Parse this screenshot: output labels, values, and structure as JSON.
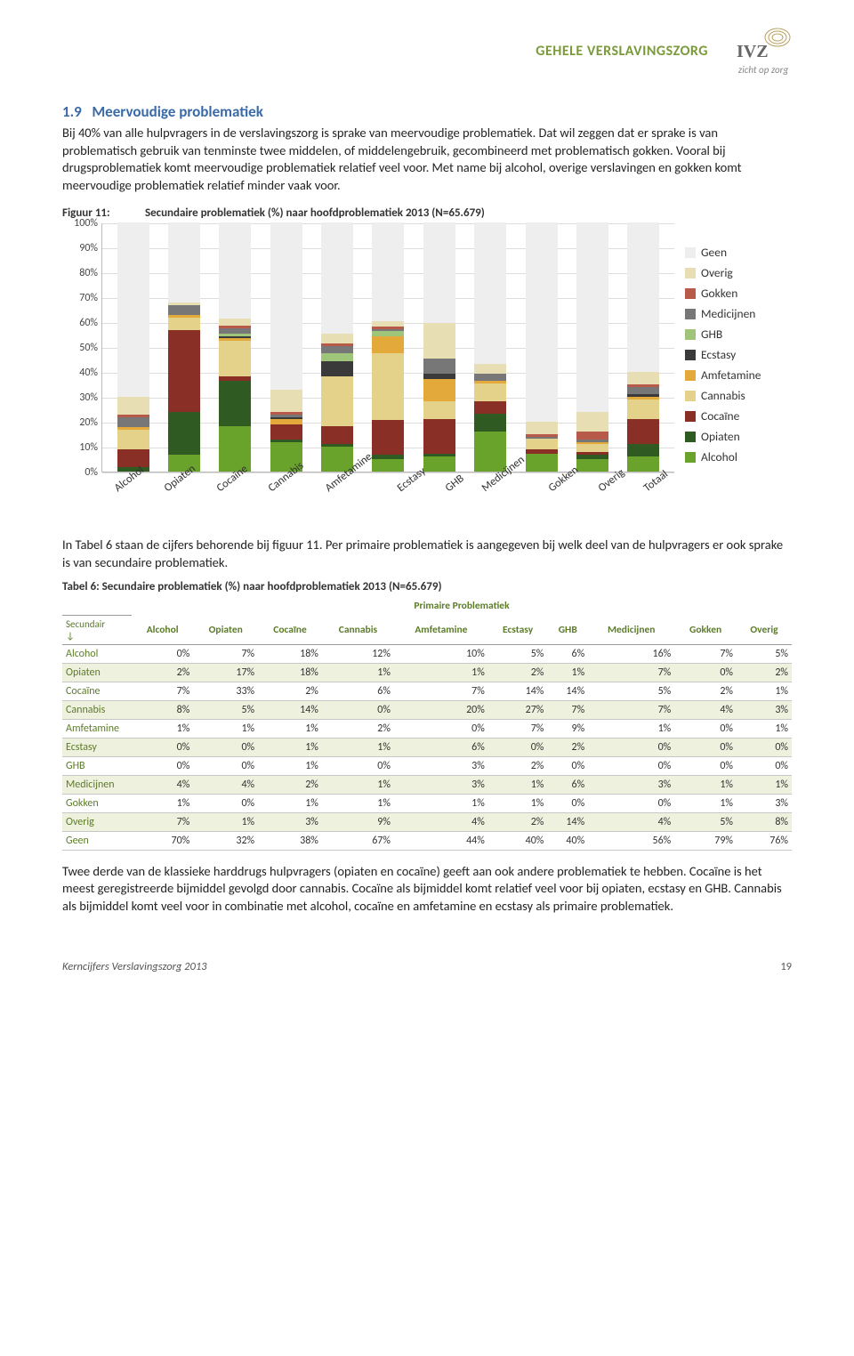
{
  "header": {
    "band": "GEHELE VERSLAVINGSZORG",
    "logo_main": "IVZ",
    "logo_sub": "zicht op zorg"
  },
  "section": {
    "number": "1.9",
    "title": "Meervoudige problematiek"
  },
  "para1": "Bij 40% van alle hulpvragers in de verslavingszorg is sprake van meervoudige problematiek. Dat wil zeggen dat er sprake is van problematisch gebruik van tenminste twee middelen, of middelengebruik, gecombineerd met problematisch gokken. Vooral bij drugsproblematiek komt meervoudige problematiek relatief veel voor. Met name bij alcohol, overige verslavingen en gokken komt meervoudige problematiek relatief minder vaak voor.",
  "fig": {
    "label": "Figuur 11:",
    "title": "Secundaire problematiek (%) naar hoofdproblematiek 2013 (N=65.679)",
    "yticks": [
      0,
      10,
      20,
      30,
      40,
      50,
      60,
      70,
      80,
      90,
      100
    ],
    "categories": [
      "Alcohol",
      "Opiaten",
      "Cocaïne",
      "Cannabis",
      "Amfetamine",
      "Ecstasy",
      "GHB",
      "Medicijnen",
      "Gokken",
      "Overig",
      "Totaal"
    ],
    "series_order": [
      "Alcohol",
      "Opiaten",
      "Cocaïne",
      "Cannabis",
      "Amfetamine",
      "Ecstasy",
      "GHB",
      "Medicijnen",
      "Gokken",
      "Overig",
      "Geen"
    ],
    "colors": {
      "Alcohol": "#6aa32c",
      "Opiaten": "#2f5a22",
      "Cocaïne": "#8a2f25",
      "Cannabis": "#e5d28a",
      "Amfetamine": "#e3a93a",
      "Ecstasy": "#3a3a3a",
      "GHB": "#9fc57a",
      "Medicijnen": "#777777",
      "Gokken": "#b85a4a",
      "Overig": "#e7dfb3",
      "Geen": "#eeeeee"
    },
    "stacks": {
      "Alcohol": {
        "Alcohol": 0,
        "Opiaten": 2,
        "Cocaïne": 7,
        "Cannabis": 8,
        "Amfetamine": 1,
        "Ecstasy": 0,
        "GHB": 0,
        "Medicijnen": 4,
        "Gokken": 1,
        "Overig": 7,
        "Geen": 70
      },
      "Opiaten": {
        "Alcohol": 7,
        "Opiaten": 17,
        "Cocaïne": 33,
        "Cannabis": 5,
        "Amfetamine": 1,
        "Ecstasy": 0,
        "GHB": 0,
        "Medicijnen": 4,
        "Gokken": 0,
        "Overig": 1,
        "Geen": 32
      },
      "Cocaïne": {
        "Alcohol": 18,
        "Opiaten": 18,
        "Cocaïne": 2,
        "Cannabis": 14,
        "Amfetamine": 1,
        "Ecstasy": 1,
        "GHB": 1,
        "Medicijnen": 2,
        "Gokken": 1,
        "Overig": 3,
        "Geen": 38
      },
      "Cannabis": {
        "Alcohol": 12,
        "Opiaten": 1,
        "Cocaïne": 6,
        "Cannabis": 0,
        "Amfetamine": 2,
        "Ecstasy": 1,
        "GHB": 0,
        "Medicijnen": 1,
        "Gokken": 1,
        "Overig": 9,
        "Geen": 67
      },
      "Amfetamine": {
        "Alcohol": 10,
        "Opiaten": 1,
        "Cocaïne": 7,
        "Cannabis": 20,
        "Amfetamine": 0,
        "Ecstasy": 6,
        "GHB": 3,
        "Medicijnen": 3,
        "Gokken": 1,
        "Overig": 4,
        "Geen": 44
      },
      "Ecstasy": {
        "Alcohol": 5,
        "Opiaten": 2,
        "Cocaïne": 14,
        "Cannabis": 27,
        "Amfetamine": 7,
        "Ecstasy": 0,
        "GHB": 2,
        "Medicijnen": 1,
        "Gokken": 1,
        "Overig": 2,
        "Geen": 40
      },
      "GHB": {
        "Alcohol": 6,
        "Opiaten": 1,
        "Cocaïne": 14,
        "Cannabis": 7,
        "Amfetamine": 9,
        "Ecstasy": 2,
        "GHB": 0,
        "Medicijnen": 6,
        "Gokken": 0,
        "Overig": 14,
        "Geen": 40
      },
      "Medicijnen": {
        "Alcohol": 16,
        "Opiaten": 7,
        "Cocaïne": 5,
        "Cannabis": 7,
        "Amfetamine": 1,
        "Ecstasy": 0,
        "GHB": 0,
        "Medicijnen": 3,
        "Gokken": 0,
        "Overig": 4,
        "Geen": 56
      },
      "Gokken": {
        "Alcohol": 7,
        "Opiaten": 0,
        "Cocaïne": 2,
        "Cannabis": 4,
        "Amfetamine": 0,
        "Ecstasy": 0,
        "GHB": 0,
        "Medicijnen": 1,
        "Gokken": 1,
        "Overig": 5,
        "Geen": 79
      },
      "Overig": {
        "Alcohol": 5,
        "Opiaten": 2,
        "Cocaïne": 1,
        "Cannabis": 3,
        "Amfetamine": 1,
        "Ecstasy": 0,
        "GHB": 0,
        "Medicijnen": 1,
        "Gokken": 3,
        "Overig": 8,
        "Geen": 76
      },
      "Totaal": {
        "Alcohol": 6,
        "Opiaten": 5,
        "Cocaïne": 10,
        "Cannabis": 8,
        "Amfetamine": 1,
        "Ecstasy": 1,
        "GHB": 0,
        "Medicijnen": 3,
        "Gokken": 1,
        "Overig": 5,
        "Geen": 60
      }
    },
    "legend_order": [
      "Geen",
      "Overig",
      "Gokken",
      "Medicijnen",
      "GHB",
      "Ecstasy",
      "Amfetamine",
      "Cannabis",
      "Cocaïne",
      "Opiaten",
      "Alcohol"
    ]
  },
  "para2": "In Tabel 6 staan de cijfers behorende bij figuur 11. Per primaire problematiek is aangegeven bij welk deel van de hulpvragers er ook sprake is van secundaire problematiek.",
  "table": {
    "caption": "Tabel 6:  Secundaire problematiek (%) naar hoofdproblematiek 2013 (N=65.679)",
    "super_header": "Primaire Problematiek",
    "row_label": "Secundair ↓",
    "columns": [
      "Alcohol",
      "Opiaten",
      "Cocaïne",
      "Cannabis",
      "Amfetamine",
      "Ecstasy",
      "GHB",
      "Medicijnen",
      "Gokken",
      "Overig"
    ],
    "rows": [
      {
        "name": "Alcohol",
        "vals": [
          "0%",
          "7%",
          "18%",
          "12%",
          "10%",
          "5%",
          "6%",
          "16%",
          "7%",
          "5%"
        ]
      },
      {
        "name": "Opiaten",
        "vals": [
          "2%",
          "17%",
          "18%",
          "1%",
          "1%",
          "2%",
          "1%",
          "7%",
          "0%",
          "2%"
        ]
      },
      {
        "name": "Cocaïne",
        "vals": [
          "7%",
          "33%",
          "2%",
          "6%",
          "7%",
          "14%",
          "14%",
          "5%",
          "2%",
          "1%"
        ]
      },
      {
        "name": "Cannabis",
        "vals": [
          "8%",
          "5%",
          "14%",
          "0%",
          "20%",
          "27%",
          "7%",
          "7%",
          "4%",
          "3%"
        ]
      },
      {
        "name": "Amfetamine",
        "vals": [
          "1%",
          "1%",
          "1%",
          "2%",
          "0%",
          "7%",
          "9%",
          "1%",
          "0%",
          "1%"
        ]
      },
      {
        "name": "Ecstasy",
        "vals": [
          "0%",
          "0%",
          "1%",
          "1%",
          "6%",
          "0%",
          "2%",
          "0%",
          "0%",
          "0%"
        ]
      },
      {
        "name": "GHB",
        "vals": [
          "0%",
          "0%",
          "1%",
          "0%",
          "3%",
          "2%",
          "0%",
          "0%",
          "0%",
          "0%"
        ]
      },
      {
        "name": "Medicijnen",
        "vals": [
          "4%",
          "4%",
          "2%",
          "1%",
          "3%",
          "1%",
          "6%",
          "3%",
          "1%",
          "1%"
        ]
      },
      {
        "name": "Gokken",
        "vals": [
          "1%",
          "0%",
          "1%",
          "1%",
          "1%",
          "1%",
          "0%",
          "0%",
          "1%",
          "3%"
        ]
      },
      {
        "name": "Overig",
        "vals": [
          "7%",
          "1%",
          "3%",
          "9%",
          "4%",
          "2%",
          "14%",
          "4%",
          "5%",
          "8%"
        ]
      },
      {
        "name": "Geen",
        "vals": [
          "70%",
          "32%",
          "38%",
          "67%",
          "44%",
          "40%",
          "40%",
          "56%",
          "79%",
          "76%"
        ]
      }
    ]
  },
  "para3": "Twee derde van de klassieke harddrugs hulpvragers (opiaten en cocaïne) geeft aan ook andere problematiek te hebben. Cocaïne is het meest geregistreerde bijmiddel gevolgd door cannabis. Cocaïne als bijmiddel komt relatief veel voor bij opiaten, ecstasy en GHB. Cannabis als bijmiddel komt veel voor in combinatie met alcohol, cocaïne en amfetamine en ecstasy als primaire problematiek.",
  "footer": {
    "left": "Kerncijfers Verslavingszorg 2013",
    "page": "19"
  }
}
